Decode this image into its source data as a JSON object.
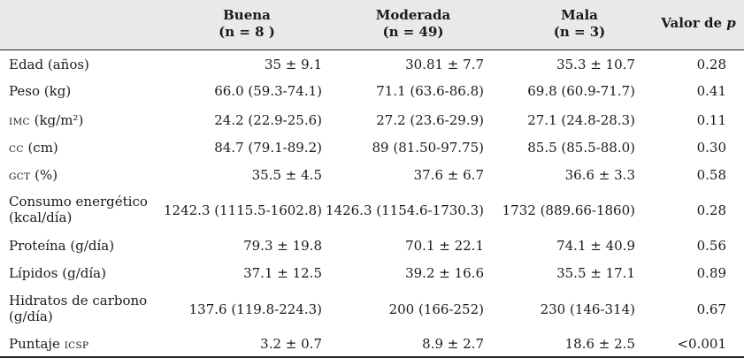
{
  "header": {
    "col1_line1": "Buena",
    "col1_line2": "(n = 8 )",
    "col2_line1": "Moderada",
    "col2_line2": "(n = 49)",
    "col3_line1": "Mala",
    "col3_line2": "(n = 3)",
    "col4_prefix": "Valor de ",
    "col4_italic": "p"
  },
  "rows": [
    {
      "label_sc": "",
      "label": "Edad (años)",
      "label2": "",
      "v1": "35 ± 9.1",
      "v2": "30.81 ± 7.7",
      "v3": "35.3 ± 10.7",
      "p": "0.28"
    },
    {
      "label_sc": "",
      "label": "Peso (kg)",
      "label2": "",
      "v1": "66.0 (59.3-74.1)",
      "v2": "71.1 (63.6-86.8)",
      "v3": "69.8 (60.9-71.7)",
      "p": "0.41"
    },
    {
      "label_sc": "IMC",
      "label": " (kg/m²)",
      "label2": "",
      "v1": "24.2 (22.9-25.6)",
      "v2": "27.2 (23.6-29.9)",
      "v3": "27.1 (24.8-28.3)",
      "p": "0.11"
    },
    {
      "label_sc": "CC",
      "label": " (cm)",
      "label2": "",
      "v1": "84.7 (79.1-89.2)",
      "v2": "89 (81.50-97.75)",
      "v3": "85.5 (85.5-88.0)",
      "p": "0.30"
    },
    {
      "label_sc": "GCT",
      "label": " (%)",
      "label2": "",
      "v1": "35.5 ± 4.5",
      "v2": "37.6 ± 6.7",
      "v3": "36.6 ± 3.3",
      "p": "0.58"
    },
    {
      "label_sc": "",
      "label": "Consumo energético",
      "label2": "(kcal/día)",
      "v1": "1242.3 (1115.5-1602.8)",
      "v2": "1426.3 (1154.6-1730.3)",
      "v3": "1732 (889.66-1860)",
      "p": "0.28"
    },
    {
      "label_sc": "",
      "label": "Proteína (g/día)",
      "label2": "",
      "v1": "79.3 ± 19.8",
      "v2": "70.1 ± 22.1",
      "v3": "74.1 ± 40.9",
      "p": "0.56"
    },
    {
      "label_sc": "",
      "label": "Lípidos (g/día)",
      "label2": "",
      "v1": "37.1 ± 12.5",
      "v2": "39.2 ± 16.6",
      "v3": "35.5 ± 17.1",
      "p": "0.89"
    },
    {
      "label_sc": "",
      "label": "Hidratos de carbono",
      "label2": "(g/día)",
      "v1": "137.6 (119.8-224.3)",
      "v2": "200 (166-252)",
      "v3": "230 (146-314)",
      "p": "0.67"
    },
    {
      "label_sc": "",
      "label": "Puntaje ",
      "label_sc_after": "ICSP",
      "label2": "",
      "v1": "3.2 ± 0.7",
      "v2": "8.9 ± 2.7",
      "v3": "18.6 ± 2.5",
      "p": "<0.001"
    }
  ]
}
